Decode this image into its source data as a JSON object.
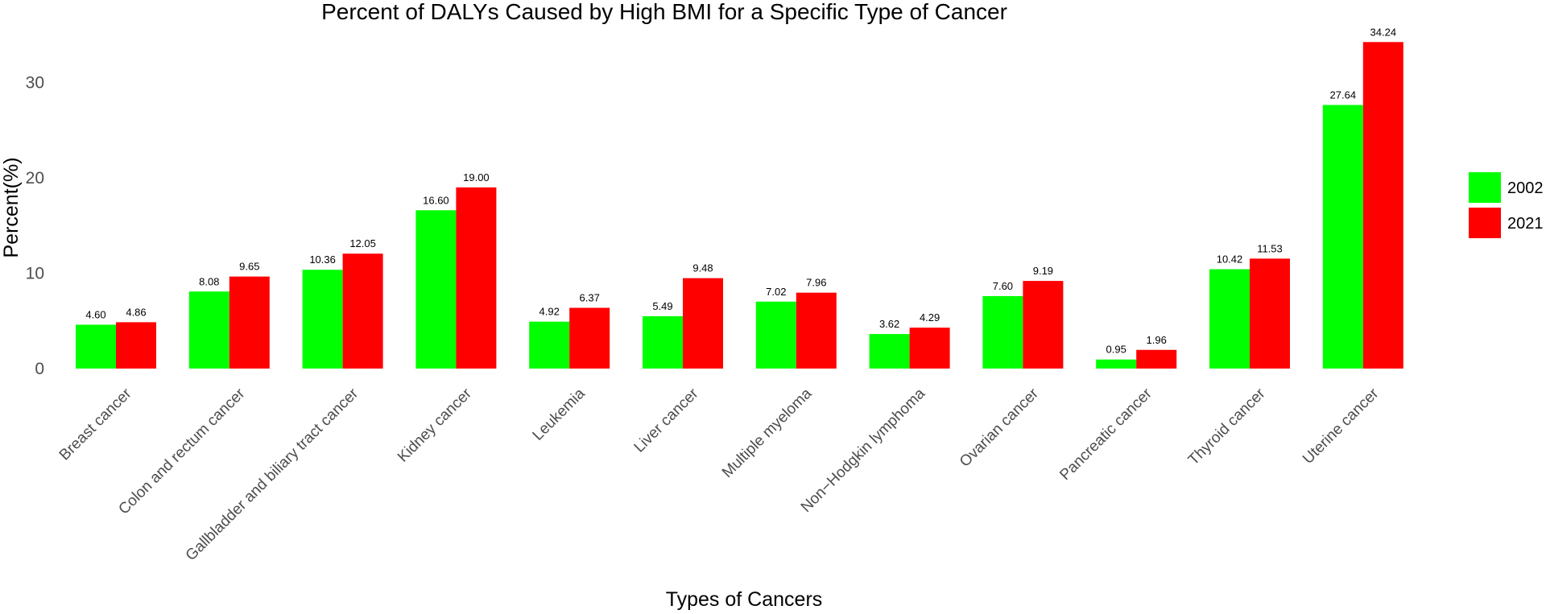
{
  "chart_data": {
    "type": "bar",
    "title": "Percent of DALYs Caused by High BMI for a Specific Type of Cancer",
    "xlabel": "Types of Cancers",
    "ylabel": "Percent(%)",
    "ylim": [
      0,
      35
    ],
    "yticks": [
      0,
      10,
      20,
      30
    ],
    "grid": false,
    "legend_position": "right",
    "categories": [
      "Breast cancer",
      "Colon and rectum cancer",
      "Gallbladder and biliary tract cancer",
      "Kidney cancer",
      "Leukemia",
      "Liver cancer",
      "Multiple myeloma",
      "Non−Hodgkin lymphoma",
      "Ovarian cancer",
      "Pancreatic cancer",
      "Thyroid cancer",
      "Uterine cancer"
    ],
    "series": [
      {
        "name": "2002",
        "color": "#00ff00",
        "values": [
          4.6,
          8.08,
          10.36,
          16.6,
          4.92,
          5.49,
          7.02,
          3.62,
          7.6,
          0.95,
          10.42,
          27.64
        ],
        "labels": [
          "4.60",
          "8.08",
          "10.36",
          "16.60",
          "4.92",
          "5.49",
          "7.02",
          "3.62",
          "7.60",
          "0.95",
          "10.42",
          "27.64"
        ]
      },
      {
        "name": "2021",
        "color": "#ff0000",
        "values": [
          4.86,
          9.65,
          12.05,
          19.0,
          6.37,
          9.48,
          7.96,
          4.29,
          9.19,
          1.96,
          11.53,
          34.24
        ],
        "labels": [
          "4.86",
          "9.65",
          "12.05",
          "19.00",
          "6.37",
          "9.48",
          "7.96",
          "4.29",
          "9.19",
          "1.96",
          "11.53",
          "34.24"
        ]
      }
    ]
  }
}
